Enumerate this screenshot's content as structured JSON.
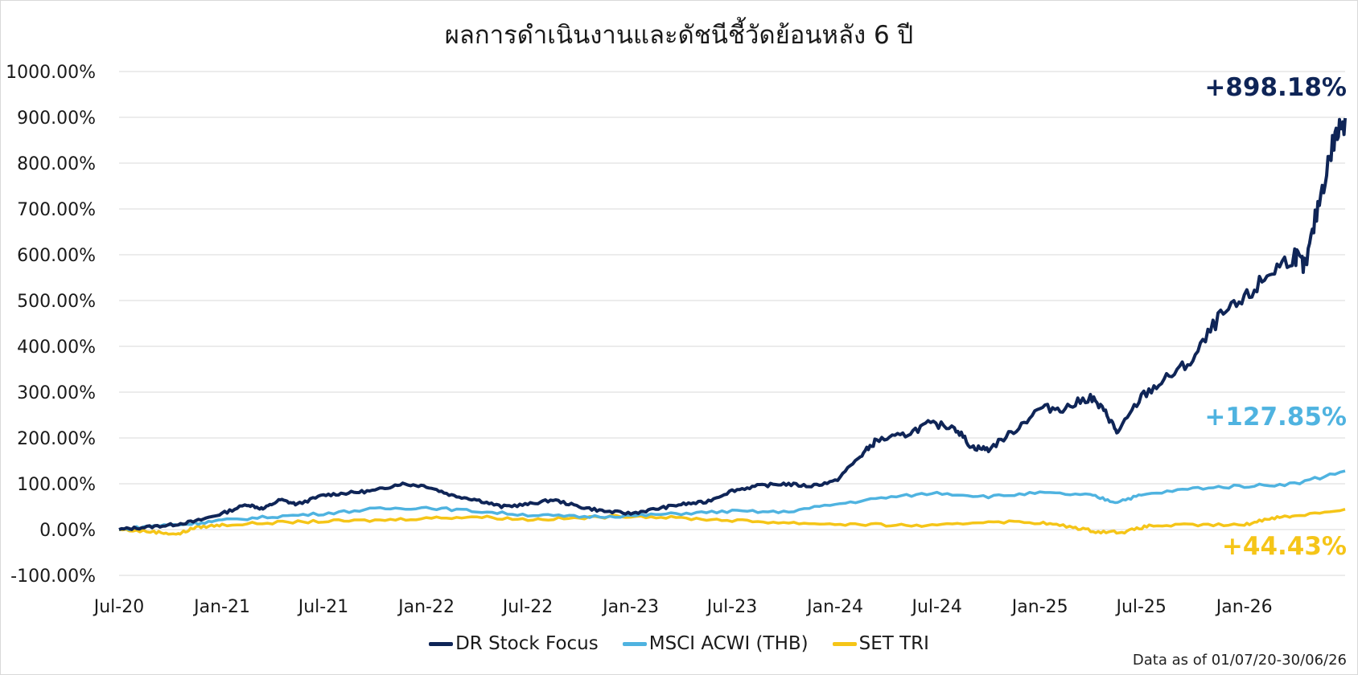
{
  "title": "ผลการดำเนินงานและดัชนีชี้วัดย้อนหลัง 6 ปี",
  "footnote": "Data as of 01/07/20-30/06/26",
  "chart_data": {
    "type": "line",
    "title": "ผลการดำเนินงานและดัชนีชี้วัดย้อนหลัง 6 ปี",
    "xlabel": "",
    "ylabel": "",
    "ylim": [
      -100,
      1000
    ],
    "y_ticks": [
      "1000.00%",
      "900.00%",
      "800.00%",
      "700.00%",
      "600.00%",
      "500.00%",
      "400.00%",
      "300.00%",
      "200.00%",
      "100.00%",
      "0.00%",
      "-100.00%"
    ],
    "y_tick_values": [
      1000,
      900,
      800,
      700,
      600,
      500,
      400,
      300,
      200,
      100,
      0,
      -100
    ],
    "x_ticks": [
      "Jul-20",
      "Jan-21",
      "Jul-21",
      "Jan-22",
      "Jul-22",
      "Jan-23",
      "Jul-23",
      "Jan-24",
      "Jul-24",
      "Jan-25",
      "Jul-25",
      "Jan-26"
    ],
    "x_tick_values": [
      "2020-07-01",
      "2021-01-01",
      "2021-07-01",
      "2022-01-01",
      "2022-07-01",
      "2023-01-01",
      "2023-07-01",
      "2024-01-01",
      "2024-07-01",
      "2025-01-01",
      "2025-07-01",
      "2026-01-01"
    ],
    "x_range": [
      "2020-07-01",
      "2026-06-30"
    ],
    "grid": true,
    "legend_position": "bottom",
    "series": [
      {
        "name": "DR Stock Focus",
        "color": "#0f2557",
        "end_label": "+898.18%",
        "points": [
          [
            "2020-07-01",
            0
          ],
          [
            "2020-08-15",
            5
          ],
          [
            "2020-10-01",
            10
          ],
          [
            "2020-11-15",
            18
          ],
          [
            "2021-01-01",
            35
          ],
          [
            "2021-02-15",
            55
          ],
          [
            "2021-03-15",
            45
          ],
          [
            "2021-04-15",
            65
          ],
          [
            "2021-05-15",
            55
          ],
          [
            "2021-07-01",
            75
          ],
          [
            "2021-08-15",
            80
          ],
          [
            "2021-10-01",
            85
          ],
          [
            "2021-11-15",
            100
          ],
          [
            "2022-01-01",
            95
          ],
          [
            "2022-02-15",
            75
          ],
          [
            "2022-04-01",
            65
          ],
          [
            "2022-05-15",
            50
          ],
          [
            "2022-07-01",
            55
          ],
          [
            "2022-08-15",
            65
          ],
          [
            "2022-10-01",
            50
          ],
          [
            "2022-11-15",
            40
          ],
          [
            "2023-01-01",
            35
          ],
          [
            "2023-02-15",
            45
          ],
          [
            "2023-04-01",
            55
          ],
          [
            "2023-05-15",
            60
          ],
          [
            "2023-07-01",
            85
          ],
          [
            "2023-08-15",
            95
          ],
          [
            "2023-10-01",
            100
          ],
          [
            "2023-11-15",
            95
          ],
          [
            "2024-01-01",
            105
          ],
          [
            "2024-02-15",
            160
          ],
          [
            "2024-03-15",
            195
          ],
          [
            "2024-05-01",
            205
          ],
          [
            "2024-06-15",
            230
          ],
          [
            "2024-08-01",
            225
          ],
          [
            "2024-09-01",
            180
          ],
          [
            "2024-10-01",
            175
          ],
          [
            "2024-11-15",
            215
          ],
          [
            "2025-01-01",
            265
          ],
          [
            "2025-02-15",
            265
          ],
          [
            "2025-04-01",
            290
          ],
          [
            "2025-05-01",
            250
          ],
          [
            "2025-05-20",
            210
          ],
          [
            "2025-07-01",
            290
          ],
          [
            "2025-08-15",
            330
          ],
          [
            "2025-10-01",
            370
          ],
          [
            "2025-11-15",
            460
          ],
          [
            "2026-01-01",
            500
          ],
          [
            "2026-02-15",
            560
          ],
          [
            "2026-04-01",
            600
          ],
          [
            "2026-04-20",
            570
          ],
          [
            "2026-05-15",
            720
          ],
          [
            "2026-06-10",
            850
          ],
          [
            "2026-06-30",
            898.18
          ]
        ]
      },
      {
        "name": "MSCI ACWI (THB)",
        "color": "#4fb3e0",
        "end_label": "+127.85%",
        "points": [
          [
            "2020-07-01",
            0
          ],
          [
            "2020-09-01",
            8
          ],
          [
            "2020-11-01",
            12
          ],
          [
            "2021-01-01",
            20
          ],
          [
            "2021-04-01",
            28
          ],
          [
            "2021-07-01",
            35
          ],
          [
            "2021-10-01",
            45
          ],
          [
            "2022-01-01",
            48
          ],
          [
            "2022-04-01",
            40
          ],
          [
            "2022-07-01",
            32
          ],
          [
            "2022-10-01",
            28
          ],
          [
            "2023-01-01",
            30
          ],
          [
            "2023-04-01",
            35
          ],
          [
            "2023-07-01",
            40
          ],
          [
            "2023-10-01",
            38
          ],
          [
            "2024-01-01",
            55
          ],
          [
            "2024-04-01",
            70
          ],
          [
            "2024-07-01",
            80
          ],
          [
            "2024-10-01",
            72
          ],
          [
            "2025-01-01",
            80
          ],
          [
            "2025-04-01",
            75
          ],
          [
            "2025-05-15",
            60
          ],
          [
            "2025-07-01",
            75
          ],
          [
            "2025-10-01",
            90
          ],
          [
            "2026-01-01",
            95
          ],
          [
            "2026-04-01",
            100
          ],
          [
            "2026-06-30",
            127.85
          ]
        ]
      },
      {
        "name": "SET TRI",
        "color": "#f5c518",
        "end_label": "+44.43%",
        "points": [
          [
            "2020-07-01",
            0
          ],
          [
            "2020-09-01",
            -5
          ],
          [
            "2020-10-15",
            -10
          ],
          [
            "2020-11-15",
            5
          ],
          [
            "2021-01-01",
            10
          ],
          [
            "2021-04-01",
            15
          ],
          [
            "2021-07-01",
            18
          ],
          [
            "2021-10-01",
            20
          ],
          [
            "2022-01-01",
            25
          ],
          [
            "2022-04-01",
            28
          ],
          [
            "2022-07-01",
            22
          ],
          [
            "2022-10-01",
            25
          ],
          [
            "2023-01-01",
            30
          ],
          [
            "2023-04-01",
            25
          ],
          [
            "2023-07-01",
            20
          ],
          [
            "2023-10-01",
            15
          ],
          [
            "2024-01-01",
            12
          ],
          [
            "2024-04-01",
            10
          ],
          [
            "2024-07-01",
            8
          ],
          [
            "2024-10-01",
            18
          ],
          [
            "2025-01-01",
            15
          ],
          [
            "2025-03-01",
            5
          ],
          [
            "2025-04-15",
            -5
          ],
          [
            "2025-06-01",
            -5
          ],
          [
            "2025-07-15",
            8
          ],
          [
            "2025-10-01",
            10
          ],
          [
            "2026-01-01",
            10
          ],
          [
            "2026-02-15",
            25
          ],
          [
            "2026-04-01",
            30
          ],
          [
            "2026-06-30",
            44.43
          ]
        ]
      }
    ]
  }
}
